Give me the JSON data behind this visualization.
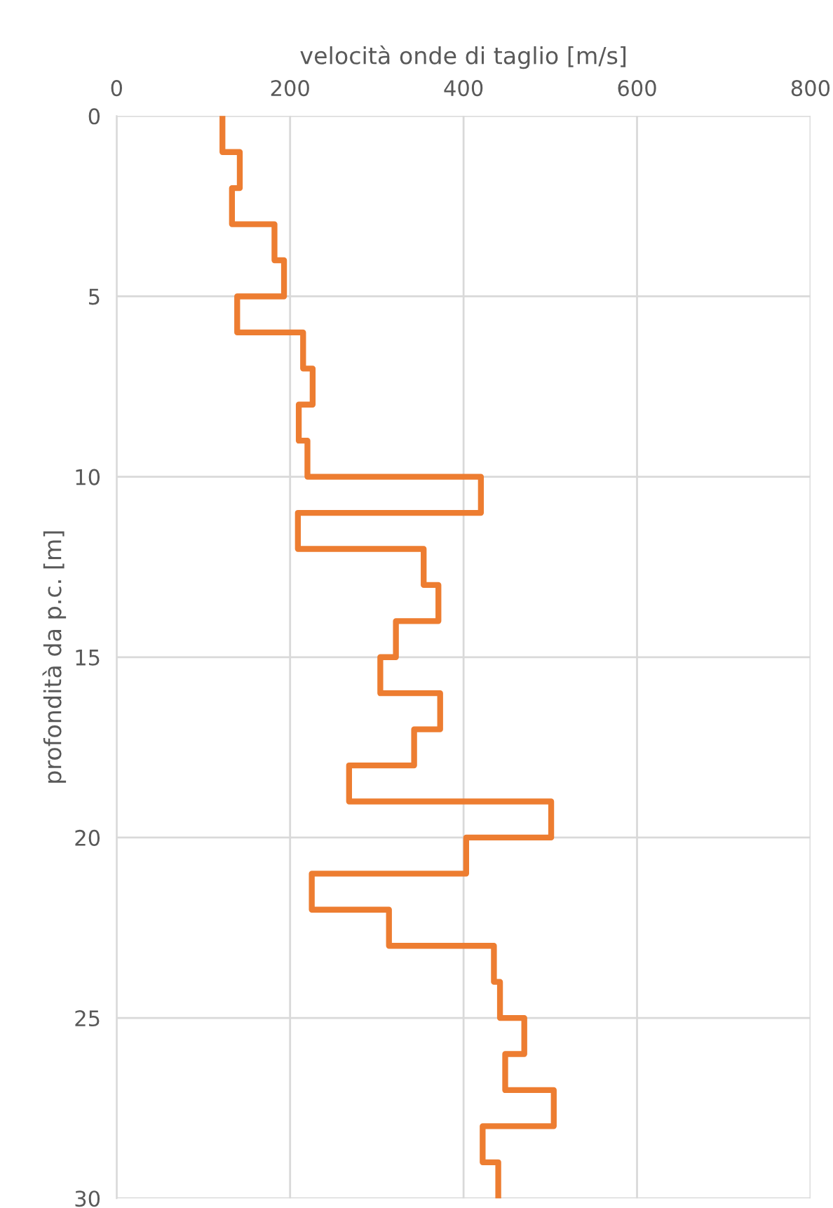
{
  "chart_data": {
    "type": "step",
    "orientation": "horizontal",
    "xlabel": "velocità onde di taglio [m/s]",
    "ylabel": "profondità da p.c. [m]",
    "x": [
      0,
      1,
      2,
      3,
      4,
      5,
      6,
      7,
      8,
      9,
      10,
      11,
      12,
      13,
      14,
      15,
      16,
      17,
      18,
      19,
      20,
      21,
      22,
      23,
      24,
      25,
      26,
      27,
      28,
      29,
      30
    ],
    "series": [
      {
        "color": "#ed7d31",
        "values": [
          122,
          142,
          133,
          182,
          193,
          139,
          215,
          226,
          210,
          220,
          420,
          209,
          354,
          371,
          322,
          304,
          373,
          343,
          268,
          501,
          403,
          225,
          314,
          435,
          442,
          470,
          448,
          504,
          422,
          440,
          440
        ]
      }
    ],
    "xlim": [
      0,
      800
    ],
    "xticks": [
      0,
      200,
      400,
      600,
      800
    ],
    "ylim": [
      30,
      0
    ],
    "yticks": [
      0,
      5,
      10,
      15,
      20,
      25,
      30
    ],
    "grid": true
  }
}
